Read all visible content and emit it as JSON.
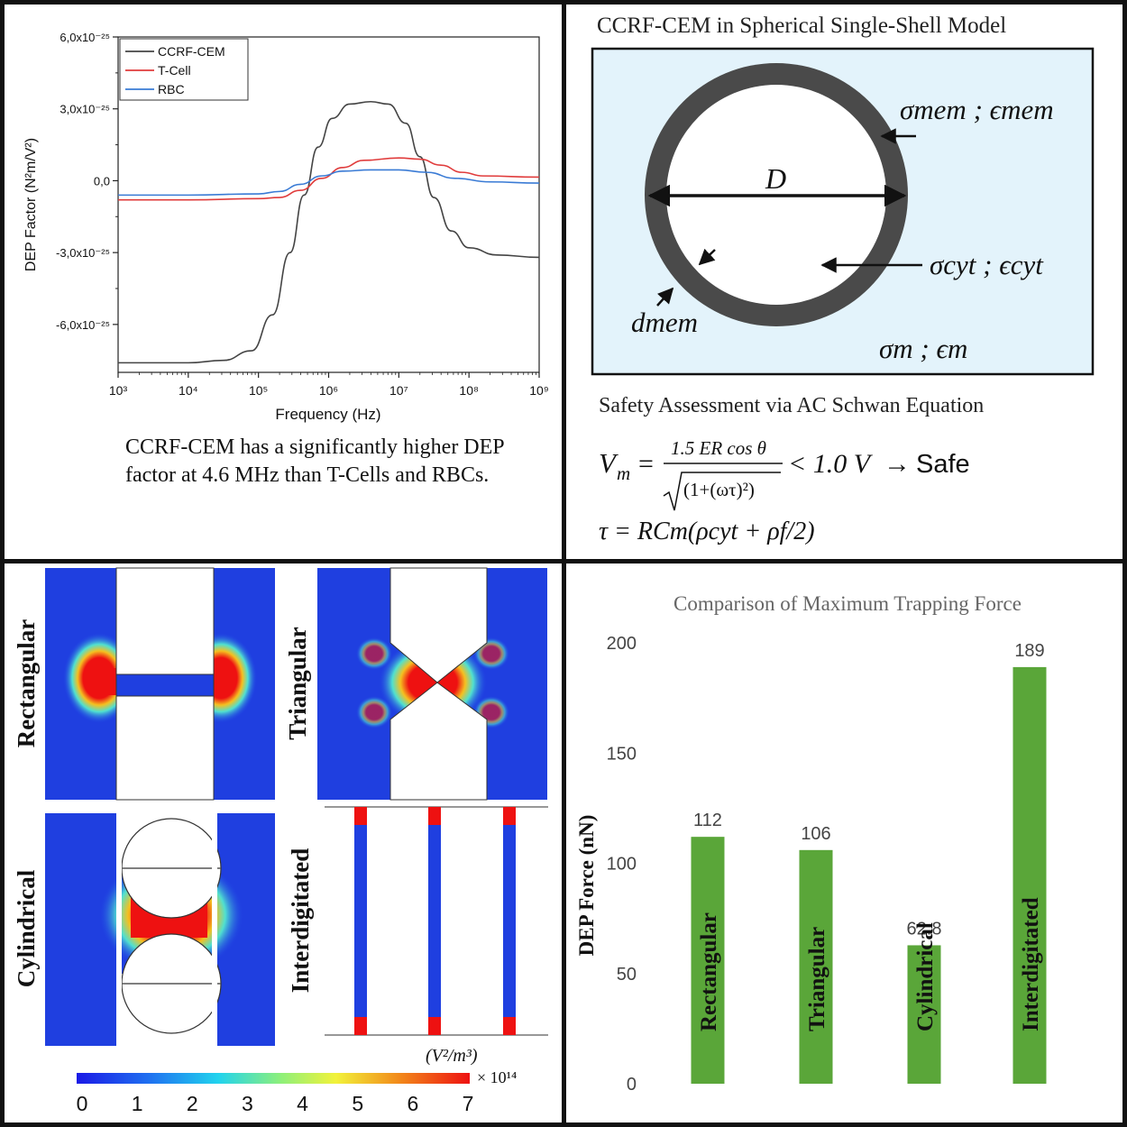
{
  "top_left": {
    "chart_data": {
      "type": "line",
      "xscale": "log",
      "xlabel": "Frequency (Hz)",
      "ylabel": "DEP Factor (N²m/V²)",
      "x_ticks": [
        "10³",
        "10⁴",
        "10⁵",
        "10⁶",
        "10⁷",
        "10⁸",
        "10⁹"
      ],
      "x_tick_exponents": [
        3,
        4,
        5,
        6,
        7,
        8,
        9
      ],
      "y_ticks": [
        {
          "value": 6.0,
          "label": "6,0x10⁻²⁵"
        },
        {
          "value": 3.0,
          "label": "3,0x10⁻²⁵"
        },
        {
          "value": 0.0,
          "label": "0,0"
        },
        {
          "value": -3.0,
          "label": "-3,0x10⁻²⁵"
        },
        {
          "value": -6.0,
          "label": "-6,0x10⁻²⁵"
        }
      ],
      "ylim": [
        -8.0,
        6.0
      ],
      "xlim_exp": [
        3,
        9
      ],
      "series": [
        {
          "name": "CCRF-CEM",
          "color": "#444444",
          "points": [
            [
              3,
              -7.6
            ],
            [
              4,
              -7.6
            ],
            [
              4.5,
              -7.5
            ],
            [
              4.9,
              -7.1
            ],
            [
              5.2,
              -5.6
            ],
            [
              5.45,
              -3.0
            ],
            [
              5.65,
              -0.6
            ],
            [
              5.85,
              1.4
            ],
            [
              6.05,
              2.6
            ],
            [
              6.3,
              3.2
            ],
            [
              6.6,
              3.3
            ],
            [
              6.85,
              3.2
            ],
            [
              7.1,
              2.4
            ],
            [
              7.3,
              1.0
            ],
            [
              7.5,
              -0.7
            ],
            [
              7.75,
              -2.1
            ],
            [
              8.0,
              -2.8
            ],
            [
              8.4,
              -3.1
            ],
            [
              9,
              -3.2
            ]
          ]
        },
        {
          "name": "T-Cell",
          "color": "#e03c3c",
          "points": [
            [
              3,
              -0.8
            ],
            [
              4,
              -0.8
            ],
            [
              5,
              -0.75
            ],
            [
              5.3,
              -0.7
            ],
            [
              5.6,
              -0.4
            ],
            [
              5.9,
              0.1
            ],
            [
              6.2,
              0.55
            ],
            [
              6.5,
              0.85
            ],
            [
              7.0,
              0.95
            ],
            [
              7.3,
              0.9
            ],
            [
              7.6,
              0.65
            ],
            [
              7.9,
              0.35
            ],
            [
              8.2,
              0.2
            ],
            [
              9,
              0.15
            ]
          ]
        },
        {
          "name": "RBC",
          "color": "#3a7bd5",
          "points": [
            [
              3,
              -0.6
            ],
            [
              4,
              -0.6
            ],
            [
              5,
              -0.55
            ],
            [
              5.3,
              -0.45
            ],
            [
              5.6,
              -0.15
            ],
            [
              5.9,
              0.2
            ],
            [
              6.2,
              0.4
            ],
            [
              6.6,
              0.45
            ],
            [
              7.0,
              0.45
            ],
            [
              7.4,
              0.35
            ],
            [
              7.8,
              0.1
            ],
            [
              8.3,
              -0.05
            ],
            [
              9,
              -0.1
            ]
          ]
        }
      ]
    },
    "caption": "CCRF-CEM has a significantly higher DEP factor at 4.6 MHz than T-Cells and RBCs."
  },
  "top_right": {
    "title": "CCRF-CEM in Spherical Single-Shell Model",
    "labels": {
      "mem": "σmem ; ϵmem",
      "diameter": "D",
      "cyt": "σcyt ; ϵcyt",
      "dmem": "dmem",
      "medium": "σm ; ϵm"
    },
    "colors": {
      "medium_fill": "#e3f3fb",
      "shell": "#4a4a4a"
    },
    "safety_title": "Safety Assessment via AC Schwan Equation",
    "equation_1": {
      "lhs": "V",
      "lhs_sub": "m",
      "numerator": "1.5 ER cos θ",
      "denominator": "(1+(ωτ)²)",
      "threshold": "< 1.0 V",
      "arrow": "→",
      "result": "Safe"
    },
    "equation_2": "τ = RCm(ρcyt + ρf/2)"
  },
  "bottom_left": {
    "labels": [
      "Rectangular",
      "Triangular",
      "Cylindrical",
      "Interdigitated"
    ],
    "unit": "(V²/m³)",
    "colorbar_ticks": [
      "0",
      "1",
      "2",
      "3",
      "4",
      "5",
      "6",
      "7"
    ],
    "colorbar_multiplier": "× 10¹⁴"
  },
  "bottom_right": {
    "chart_data": {
      "type": "bar",
      "title": "Comparison of Maximum Trapping Force",
      "ylabel": "DEP Force (nN)",
      "ylim": [
        0,
        200
      ],
      "y_ticks": [
        "0",
        "50",
        "100",
        "150",
        "200"
      ],
      "categories": [
        "Rectangular",
        "Triangular",
        "Cylindrical",
        "Interdigitated"
      ],
      "values": [
        112,
        106,
        62.8,
        189
      ],
      "value_labels": [
        "112",
        "106",
        "62.8",
        "189"
      ],
      "bar_color": "#5aa639"
    }
  }
}
